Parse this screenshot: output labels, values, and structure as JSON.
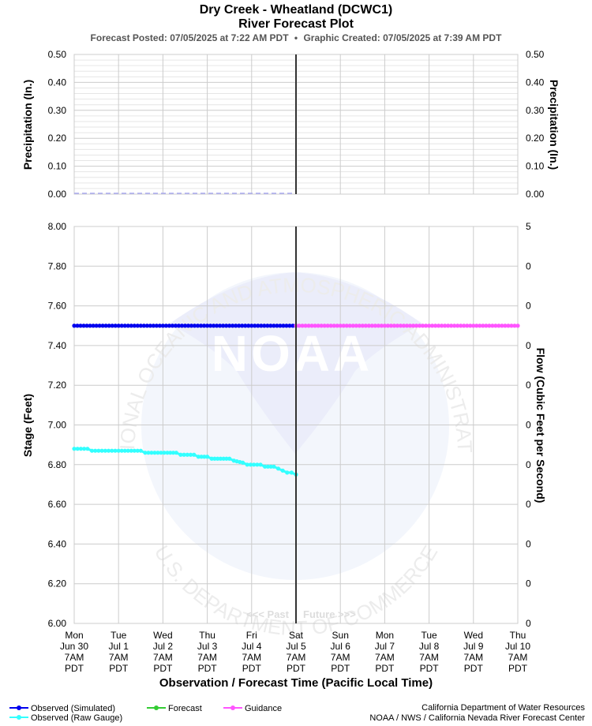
{
  "header": {
    "title": "Dry Creek - Wheatland (DCWC1)",
    "subtitle": "River Forecast Plot",
    "posted": "Forecast Posted: 07/05/2025 at 7:22 AM PDT",
    "bullet": "•",
    "created": "Graphic Created: 07/05/2025 at 7:39 AM PDT"
  },
  "chart_data": [
    {
      "type": "line",
      "name": "precipitation",
      "ylabel_left": "Precipitation (In.)",
      "ylabel_right": "Precipitation (In.)",
      "yticks": [
        "0.50",
        "0.40",
        "0.30",
        "0.20",
        "0.10",
        "0.00"
      ],
      "ylim": [
        0,
        0.5
      ],
      "grid": true,
      "series": [
        {
          "values": [
            [
              0,
              0
            ],
            [
              5,
              0
            ]
          ]
        }
      ]
    },
    {
      "type": "line",
      "name": "stage",
      "xlabel": "Observation / Forecast Time (Pacific Local Time)",
      "ylabel_left": "Stage (Feet)",
      "ylabel_right": "Flow (Cubic Feet per Second)",
      "ylim": [
        6.0,
        8.0
      ],
      "grid": true,
      "yticks_left": [
        "8.00",
        "7.80",
        "7.60",
        "7.40",
        "7.20",
        "7.00",
        "6.80",
        "6.60",
        "6.40",
        "6.20",
        "6.00"
      ],
      "yticks_right": [
        "5",
        "0",
        "0",
        "0",
        "0",
        "0",
        "0",
        "0",
        "0",
        "0",
        "0"
      ],
      "x_categories": [
        [
          "Mon",
          "Jun 30",
          "7AM",
          "PDT"
        ],
        [
          "Tue",
          "Jul 1",
          "7AM",
          "PDT"
        ],
        [
          "Wed",
          "Jul 2",
          "7AM",
          "PDT"
        ],
        [
          "Thu",
          "Jul 3",
          "7AM",
          "PDT"
        ],
        [
          "Fri",
          "Jul 4",
          "7AM",
          "PDT"
        ],
        [
          "Sat",
          "Jul 5",
          "7AM",
          "PDT"
        ],
        [
          "Sun",
          "Jul 6",
          "7AM",
          "PDT"
        ],
        [
          "Mon",
          "Jul 7",
          "7AM",
          "PDT"
        ],
        [
          "Tue",
          "Jul 8",
          "7AM",
          "PDT"
        ],
        [
          "Wed",
          "Jul 9",
          "7AM",
          "PDT"
        ],
        [
          "Thu",
          "Jul 10",
          "7AM",
          "PDT"
        ]
      ],
      "now_label_past": "<<< Past",
      "now_label_future": "Future >>>",
      "series": [
        {
          "name": "Observed (Simulated)",
          "color": "#0000ee",
          "values": [
            [
              0,
              7.5
            ],
            [
              5,
              7.5
            ]
          ]
        },
        {
          "name": "Observed (Raw Gauge)",
          "color": "#33ffff",
          "values": [
            [
              0,
              6.88
            ],
            [
              0.3,
              6.88
            ],
            [
              0.4,
              6.87
            ],
            [
              1.0,
              6.87
            ],
            [
              1.5,
              6.87
            ],
            [
              1.6,
              6.86
            ],
            [
              2.1,
              6.86
            ],
            [
              2.3,
              6.86
            ],
            [
              2.4,
              6.85
            ],
            [
              2.7,
              6.85
            ],
            [
              2.8,
              6.84
            ],
            [
              3.0,
              6.84
            ],
            [
              3.1,
              6.83
            ],
            [
              3.5,
              6.83
            ],
            [
              3.6,
              6.82
            ],
            [
              3.8,
              6.81
            ],
            [
              3.9,
              6.8
            ],
            [
              4.2,
              6.8
            ],
            [
              4.3,
              6.79
            ],
            [
              4.5,
              6.79
            ],
            [
              4.6,
              6.78
            ],
            [
              4.7,
              6.77
            ],
            [
              4.8,
              6.76
            ],
            [
              4.9,
              6.76
            ],
            [
              5.0,
              6.75
            ]
          ]
        },
        {
          "name": "Forecast",
          "color": "#33cc33",
          "values": []
        },
        {
          "name": "Guidance",
          "color": "#ff55ff",
          "values": [
            [
              5,
              7.5
            ],
            [
              10,
              7.5
            ]
          ]
        }
      ]
    }
  ],
  "watermark": {
    "arc_top": "NATIONAL OCEANIC AND ATMOSPHERIC ADMINISTRATION",
    "arc_bottom": "U.S. DEPARTMENT OF COMMERCE",
    "logo": "NOAA"
  },
  "legend": {
    "items": [
      {
        "label": "Observed (Simulated)",
        "color": "#0000ee"
      },
      {
        "label": "Observed (Raw Gauge)",
        "color": "#33ffff"
      },
      {
        "label": "Forecast",
        "color": "#33cc33"
      },
      {
        "label": "Guidance",
        "color": "#ff55ff"
      }
    ]
  },
  "credits": {
    "line1": "California Department of Water Resources",
    "line2": "NOAA / NWS / California Nevada River Forecast Center"
  }
}
